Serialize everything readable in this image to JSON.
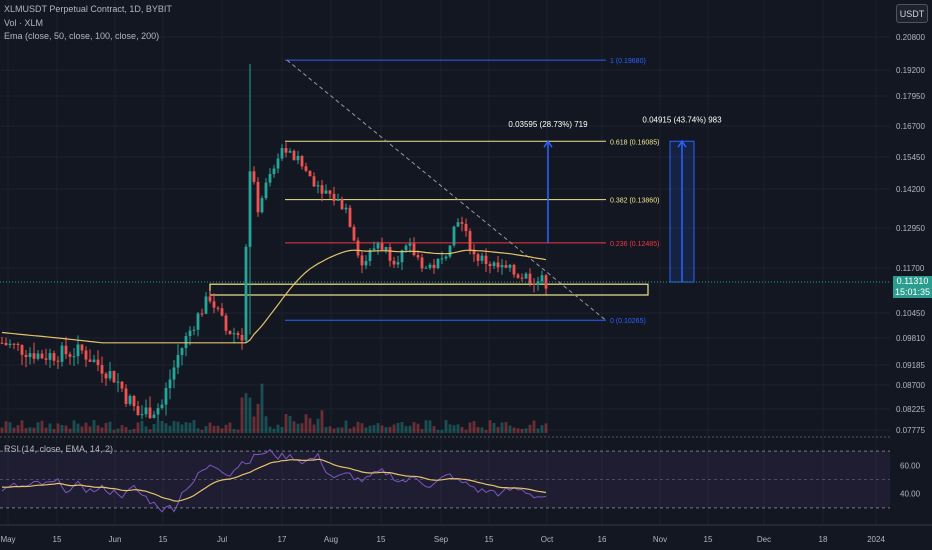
{
  "header": {
    "title": "XLMUSDT Perpetual Contract, 1D, BYBIT",
    "indicator_vol": "Vol · XLM",
    "indicator_ema": "Ema (close, 50, close, 100, close, 200)",
    "currency_button": "USDT"
  },
  "rsi_panel": {
    "title": "RSI (14, close, EMA, 14, 2)"
  },
  "price_tag": {
    "price": "0.11310",
    "countdown": "15:01:35"
  },
  "colors": {
    "bg": "#131722",
    "up": "#26a69a",
    "down": "#ef5350",
    "ema": "#e6c36a",
    "fib": "#f0e68c",
    "fib_red": "#f23645",
    "fib_blue": "#2962ff",
    "rsi": "#7e57c2"
  },
  "chart_data": {
    "type": "candlestick",
    "x_ticks": [
      "May",
      "15",
      "Jun",
      "15",
      "Jul",
      "17",
      "Aug",
      "15",
      "Sep",
      "15",
      "Oct",
      "16",
      "Nov",
      "15",
      "Dec",
      "18",
      "2024"
    ],
    "y_ticks": [
      "0.20800",
      "0.19200",
      "0.17950",
      "0.16700",
      "0.15450",
      "0.14200",
      "0.12950",
      "0.11700",
      "0.10450",
      "0.09810",
      "0.09185",
      "0.08700",
      "0.08225",
      "0.07775"
    ],
    "price_range": [
      0.0775,
      0.21
    ],
    "last_price": 0.1131,
    "fib_levels": [
      {
        "label": "1 (0.19680)",
        "value": 0.1968
      },
      {
        "label": "0.618 (0.16085)",
        "value": 0.16085
      },
      {
        "label": "0.382 (0.13860)",
        "value": 0.1386
      },
      {
        "label": "0.236 (0.12485)",
        "value": 0.12485
      },
      {
        "label": "0 (0.10265)",
        "value": 0.10265
      }
    ],
    "measure_labels": [
      "0.03595 (28.73%) 719",
      "0.04915 (43.74%) 983"
    ],
    "rsi_ticks": [
      "60.00",
      "40.00"
    ],
    "rsi_range": [
      20,
      80
    ]
  }
}
